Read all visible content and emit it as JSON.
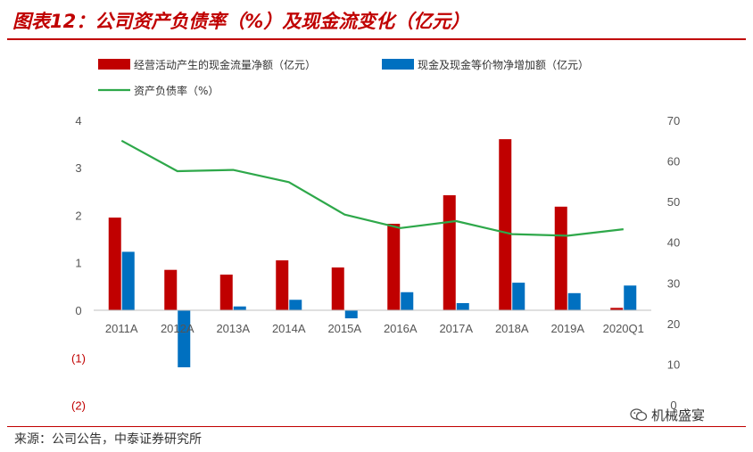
{
  "title": "图表12：公司资产负债率（%）及现金流变化（亿元）",
  "source": "来源：公司公告，中泰证券研究所",
  "watermark": "机械盛宴",
  "icons": {
    "watermark": "wechat-icon"
  },
  "colors": {
    "bar1": "#c00000",
    "bar2": "#0070c0",
    "line": "#2ea84a",
    "title": "#c00000",
    "negative_tick": "#c00000"
  },
  "chart_data": {
    "type": "bar",
    "categories": [
      "2011A",
      "2012A",
      "2013A",
      "2014A",
      "2015A",
      "2016A",
      "2017A",
      "2018A",
      "2019A",
      "2020Q1"
    ],
    "series": [
      {
        "name": "经营活动产生的现金流量净额（亿元）",
        "type": "bar",
        "axis": "left",
        "values": [
          1.95,
          0.85,
          0.75,
          1.05,
          0.9,
          1.82,
          2.42,
          3.6,
          2.18,
          0.05
        ]
      },
      {
        "name": "现金及现金等价物净增加额（亿元）",
        "type": "bar",
        "axis": "left",
        "values": [
          1.23,
          -1.2,
          0.08,
          0.22,
          -0.17,
          0.38,
          0.15,
          0.58,
          0.36,
          0.52
        ]
      },
      {
        "name": "资产负债率（%）",
        "type": "line",
        "axis": "right",
        "values": [
          65,
          57.5,
          57.8,
          54.8,
          46.8,
          43.5,
          45.2,
          42.0,
          41.6,
          43.2
        ]
      }
    ],
    "y_left": {
      "ylim": [
        -2,
        4
      ],
      "ticks": [
        4,
        3,
        2,
        1,
        0,
        -1,
        -2
      ],
      "tick_labels": [
        "4",
        "3",
        "2",
        "1",
        "0",
        "(1)",
        "(2)"
      ]
    },
    "y_right": {
      "ylim": [
        0,
        70
      ],
      "ticks": [
        70,
        60,
        50,
        40,
        30,
        20,
        10,
        0
      ],
      "tick_labels": [
        "70",
        "60",
        "50",
        "40",
        "30",
        "20",
        "10",
        "0"
      ]
    },
    "legend_position": "top",
    "grid": false
  }
}
